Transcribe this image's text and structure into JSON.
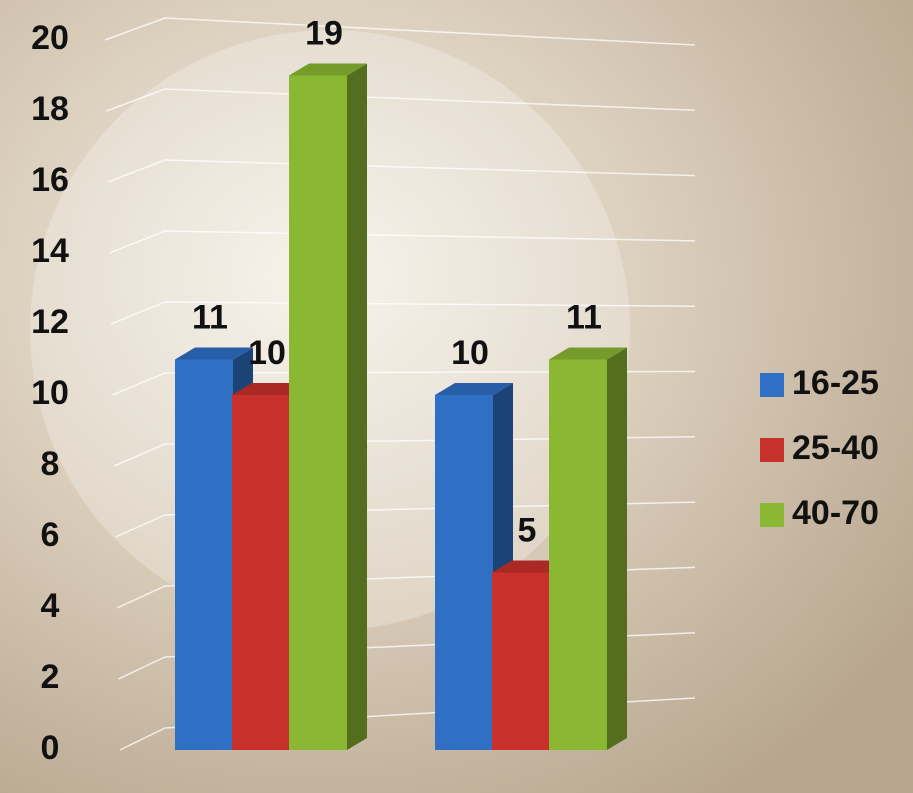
{
  "chart_data": {
    "type": "bar3d",
    "categories": [
      null,
      null
    ],
    "series": [
      {
        "name": "16-25",
        "color": "#2f6fc4",
        "values": [
          11,
          10
        ]
      },
      {
        "name": "25-40",
        "color": "#c8302c",
        "values": [
          10,
          5
        ]
      },
      {
        "name": "40-70",
        "color": "#8ab833",
        "values": [
          19,
          11
        ]
      }
    ],
    "ylim": [
      0,
      20
    ],
    "yticks": [
      0,
      2,
      4,
      6,
      8,
      10,
      12,
      14,
      16,
      18,
      20
    ],
    "grid": true,
    "legend": "right"
  }
}
